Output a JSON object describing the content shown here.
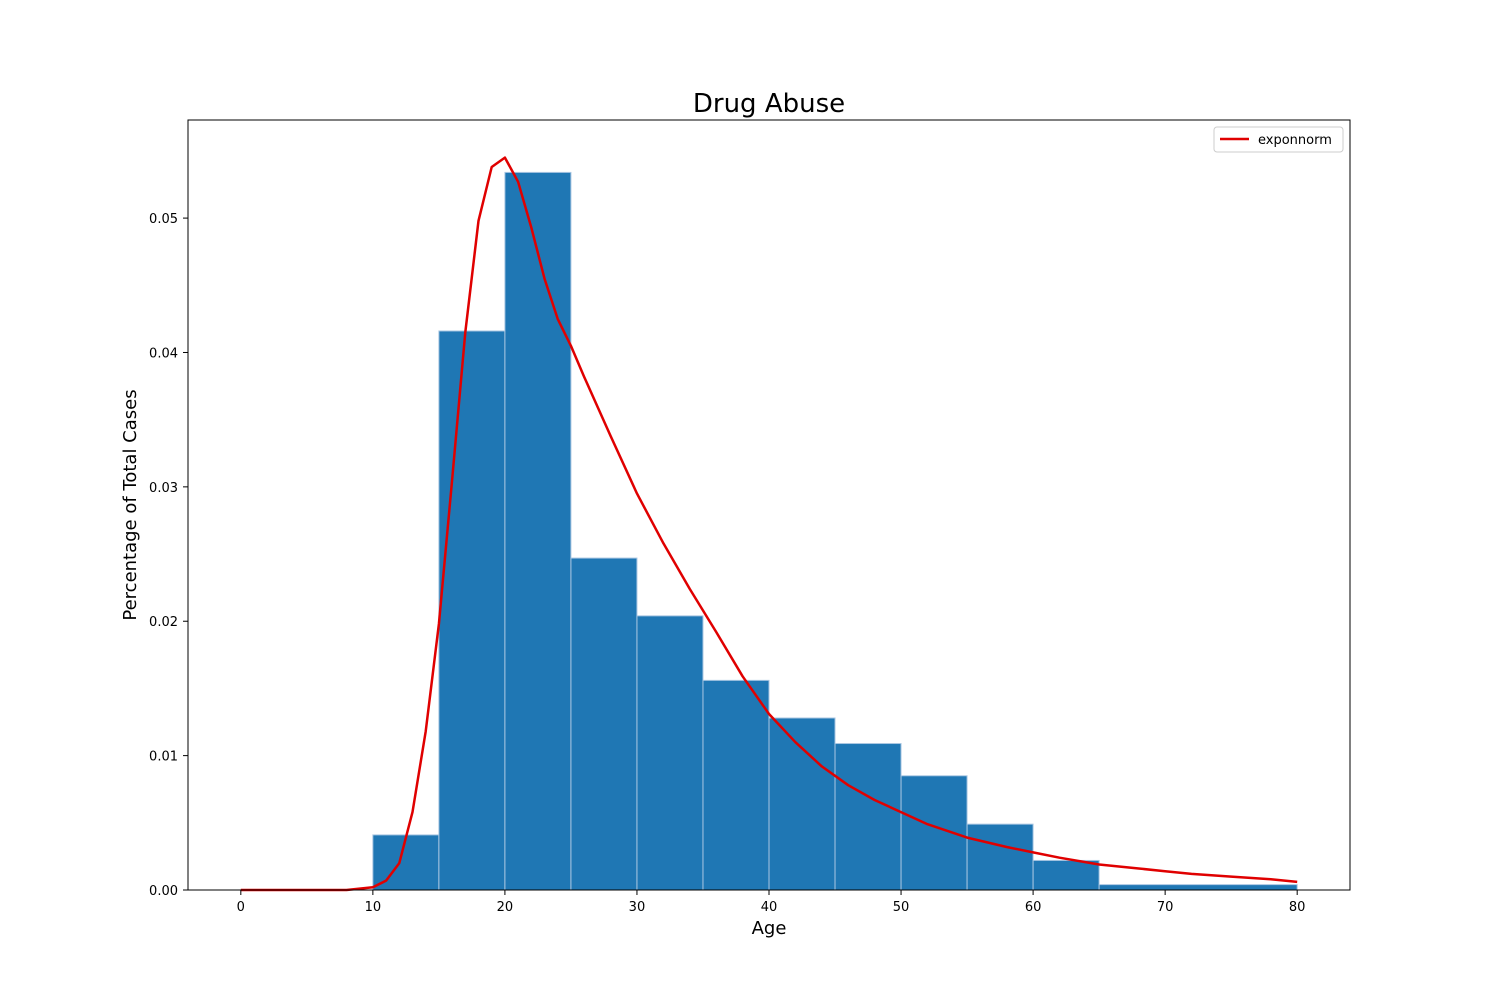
{
  "chart_data": {
    "type": "bar",
    "title": "Drug Abuse",
    "xlabel": "Age",
    "ylabel": "Percentage of Total Cases",
    "xlim": [
      -4,
      84
    ],
    "ylim": [
      0,
      0.0573
    ],
    "xticks": [
      0,
      10,
      20,
      30,
      40,
      50,
      60,
      70,
      80
    ],
    "xtick_labels": [
      "0",
      "10",
      "20",
      "30",
      "40",
      "50",
      "60",
      "70",
      "80"
    ],
    "yticks": [
      0.0,
      0.01,
      0.02,
      0.03,
      0.04,
      0.05
    ],
    "ytick_labels": [
      "0.00",
      "0.01",
      "0.02",
      "0.03",
      "0.04",
      "0.05"
    ],
    "grid": false,
    "legend_position": "top-right",
    "histogram": {
      "bin_edges": [
        10,
        15,
        20,
        25,
        30,
        35,
        40,
        45,
        50,
        55,
        60,
        65,
        80
      ],
      "values": [
        0.0041,
        0.0416,
        0.0534,
        0.0247,
        0.0204,
        0.0156,
        0.0128,
        0.0109,
        0.0085,
        0.0049,
        0.0022,
        0.0004
      ],
      "color": "#1f77b4",
      "edge_color": "#a9c6e2"
    },
    "series": [
      {
        "name": "exponnorm",
        "color": "#e00000",
        "x": [
          0,
          8,
          10,
          11,
          12,
          13,
          14,
          15,
          16,
          17,
          18,
          19,
          20,
          21,
          22,
          23,
          24,
          25,
          26,
          27,
          28,
          30,
          32,
          34,
          36,
          38,
          40,
          42,
          44,
          46,
          48,
          50,
          52,
          55,
          58,
          60,
          62,
          65,
          68,
          70,
          72,
          75,
          78,
          80
        ],
        "y": [
          0.0,
          0.0,
          0.0002,
          0.0007,
          0.002,
          0.0058,
          0.0118,
          0.0198,
          0.0305,
          0.0415,
          0.0498,
          0.0538,
          0.0545,
          0.0527,
          0.0493,
          0.0455,
          0.0425,
          0.0405,
          0.0382,
          0.036,
          0.0338,
          0.0295,
          0.0258,
          0.0224,
          0.0192,
          0.0159,
          0.0131,
          0.011,
          0.0092,
          0.0078,
          0.0067,
          0.0058,
          0.0049,
          0.0039,
          0.0032,
          0.0028,
          0.0024,
          0.0019,
          0.0016,
          0.0014,
          0.0012,
          0.001,
          0.0008,
          0.0006
        ]
      }
    ]
  }
}
